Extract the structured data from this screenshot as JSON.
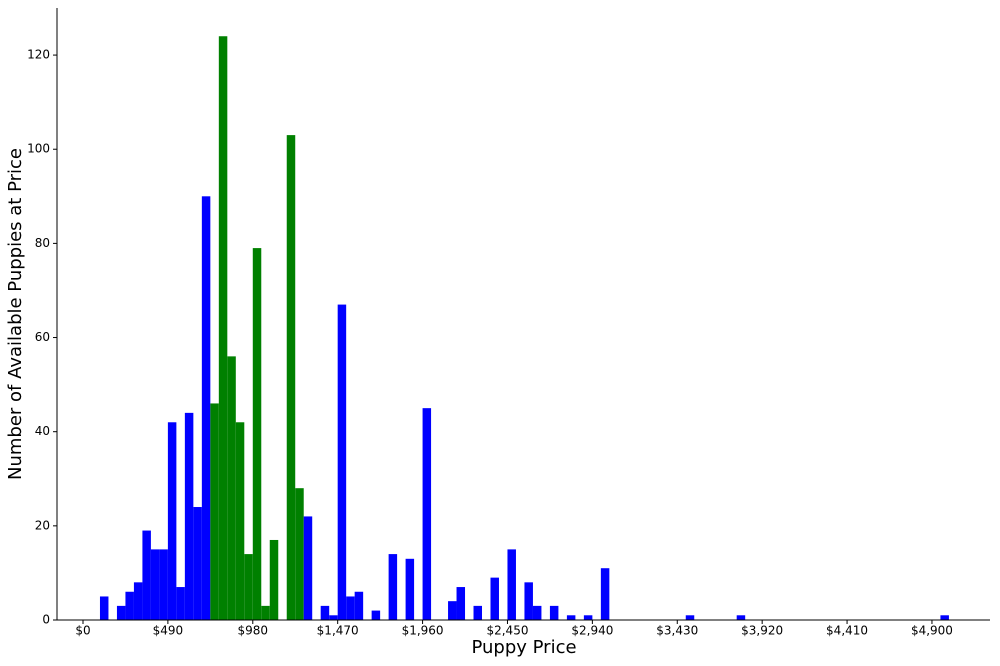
{
  "chart_data": {
    "type": "histogram",
    "xlabel": "Puppy Price",
    "ylabel": "Number of Available Puppies at Price",
    "bins": [
      98,
      147,
      196,
      245,
      294,
      343,
      392,
      441,
      490,
      539,
      588,
      637,
      686,
      735,
      784,
      833,
      882,
      931,
      980,
      1029,
      1078,
      1127,
      1176,
      1225,
      1274,
      1323,
      1372,
      1421,
      1470,
      1519,
      1568,
      1617,
      1666,
      1715,
      1764,
      1813,
      1862,
      1911,
      1960,
      2009,
      2058,
      2107,
      2156,
      2205,
      2254,
      2303,
      2352,
      2401,
      2450,
      2499,
      2548,
      2597,
      2646,
      2695,
      2744,
      2793,
      2842,
      2891,
      2940,
      2989,
      3038,
      3087,
      3136,
      3185,
      3234,
      3283,
      3332,
      3381,
      3430,
      3479,
      3528,
      3577,
      3626,
      3675,
      3724,
      3773,
      3822,
      3871,
      3920,
      3969,
      4018,
      4067,
      4116,
      4165,
      4214,
      4263,
      4312,
      4361,
      4410,
      4459,
      4508,
      4557,
      4606,
      4655,
      4704,
      4753,
      4802,
      4851,
      4900,
      4949,
      4998
    ],
    "values": [
      5,
      0,
      3,
      6,
      8,
      19,
      15,
      15,
      42,
      7,
      44,
      24,
      90,
      46,
      124,
      56,
      42,
      14,
      79,
      3,
      17,
      0,
      103,
      28,
      22,
      0,
      3,
      1,
      67,
      5,
      6,
      0,
      2,
      0,
      14,
      0,
      13,
      0,
      45,
      0,
      0,
      4,
      7,
      0,
      3,
      0,
      9,
      0,
      15,
      0,
      8,
      3,
      0,
      3,
      0,
      1,
      0,
      1,
      0,
      11,
      0,
      0,
      0,
      0,
      0,
      0,
      0,
      0,
      0,
      1,
      0,
      0,
      0,
      0,
      0,
      1,
      0,
      0,
      0,
      0,
      0,
      0,
      0,
      0,
      0,
      0,
      0,
      0,
      0,
      0,
      0,
      0,
      0,
      0,
      0,
      0,
      0,
      0,
      0,
      1
    ],
    "colors": [
      "blue",
      "blue",
      "blue",
      "blue",
      "blue",
      "blue",
      "blue",
      "blue",
      "blue",
      "blue",
      "blue",
      "blue",
      "blue",
      "green",
      "green",
      "green",
      "green",
      "green",
      "green",
      "green",
      "green",
      "green",
      "green",
      "green",
      "blue",
      "blue",
      "blue",
      "blue",
      "blue",
      "blue",
      "blue",
      "blue",
      "blue",
      "blue",
      "blue",
      "blue",
      "blue",
      "blue",
      "blue",
      "blue",
      "blue",
      "blue",
      "blue",
      "blue",
      "blue",
      "blue",
      "blue",
      "blue",
      "blue",
      "blue",
      "blue",
      "blue",
      "blue",
      "blue",
      "blue",
      "blue",
      "blue",
      "blue",
      "blue",
      "blue",
      "blue",
      "blue",
      "blue",
      "blue",
      "blue",
      "blue",
      "blue",
      "blue",
      "blue",
      "blue",
      "blue",
      "blue",
      "blue",
      "blue",
      "blue",
      "blue",
      "blue",
      "blue",
      "blue",
      "blue",
      "blue",
      "blue",
      "blue",
      "blue",
      "blue",
      "blue",
      "blue",
      "blue",
      "blue",
      "blue",
      "blue",
      "blue",
      "blue",
      "blue",
      "blue",
      "blue",
      "blue",
      "blue",
      "blue",
      "blue"
    ],
    "xlim": [
      -150,
      5235
    ],
    "ylim": [
      0,
      130
    ],
    "xticks": [
      {
        "value": 0,
        "label": "$0"
      },
      {
        "value": 490,
        "label": "$490"
      },
      {
        "value": 980,
        "label": "$980"
      },
      {
        "value": 1470,
        "label": "$1,470"
      },
      {
        "value": 1960,
        "label": "$1,960"
      },
      {
        "value": 2450,
        "label": "$2,450"
      },
      {
        "value": 2940,
        "label": "$2,940"
      },
      {
        "value": 3430,
        "label": "$3,430"
      },
      {
        "value": 3920,
        "label": "$3,920"
      },
      {
        "value": 4410,
        "label": "$4,410"
      },
      {
        "value": 4900,
        "label": "$4,900"
      }
    ],
    "yticks": [
      0,
      20,
      40,
      60,
      80,
      100,
      120
    ],
    "grid": false
  }
}
